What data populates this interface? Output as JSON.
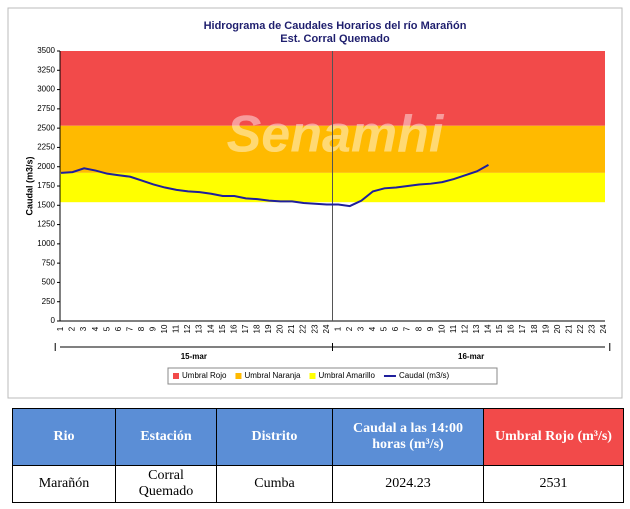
{
  "chart_data": {
    "type": "line",
    "title": "Hidrograma de Caudales Horarios del río Marañón",
    "subtitle": "Est. Corral Quemado",
    "watermark": "Senamhi",
    "ylabel": "Caudal (m3/s)",
    "categories": [
      "1",
      "2",
      "3",
      "4",
      "5",
      "6",
      "7",
      "8",
      "9",
      "10",
      "11",
      "12",
      "13",
      "14",
      "15",
      "16",
      "17",
      "18",
      "19",
      "20",
      "21",
      "22",
      "23",
      "24",
      "1",
      "2",
      "3",
      "4",
      "5",
      "6",
      "7",
      "8",
      "9",
      "10",
      "11",
      "12",
      "13",
      "14",
      "15",
      "16",
      "17",
      "18",
      "19",
      "20",
      "21",
      "22",
      "23",
      "24"
    ],
    "groups": [
      "15-mar",
      "16-mar"
    ],
    "ylim": [
      0,
      3500
    ],
    "yticks": [
      0,
      250,
      500,
      750,
      1000,
      1250,
      1500,
      1750,
      2000,
      2250,
      2500,
      2750,
      3000,
      3250,
      3500
    ],
    "bands": [
      {
        "name": "Umbral Rojo",
        "color": "#f24a4a",
        "from": 2531,
        "to": 3500
      },
      {
        "name": "Umbral Naranja",
        "color": "#ffba00",
        "from": 1920,
        "to": 2531
      },
      {
        "name": "Umbral Amarillo",
        "color": "#ffff00",
        "from": 1540,
        "to": 1920
      }
    ],
    "series": [
      {
        "name": "Caudal (m3/s)",
        "color": "#1f1f9c",
        "values": [
          1920,
          1930,
          1980,
          1950,
          1910,
          1890,
          1870,
          1820,
          1770,
          1730,
          1700,
          1680,
          1670,
          1650,
          1620,
          1620,
          1590,
          1580,
          1560,
          1550,
          1550,
          1530,
          1520,
          1510,
          1510,
          1490,
          1560,
          1680,
          1720,
          1730,
          1750,
          1770,
          1780,
          1800,
          1840,
          1890,
          1940,
          2024.23,
          null,
          null,
          null,
          null,
          null,
          null,
          null,
          null,
          null,
          null
        ]
      }
    ]
  },
  "table": {
    "header": [
      "Rio",
      "Estación",
      "Distrito",
      "Caudal a las 14:00 horas (m³/s)",
      "Umbral Rojo (m³/s)"
    ],
    "rows": [
      [
        "Marañón",
        "Corral Quemado",
        "Cumba",
        "2024.23",
        "2531"
      ]
    ]
  }
}
